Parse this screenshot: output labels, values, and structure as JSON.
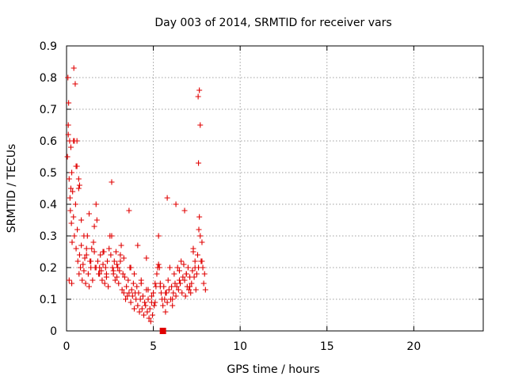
{
  "chart_data": {
    "type": "scatter",
    "title": "Day 003 of 2014, SRMTID for receiver vars",
    "xlabel": "GPS time / hours",
    "ylabel": "SRMTID / TECUs",
    "xlim": [
      0,
      24
    ],
    "ylim": [
      0,
      0.9
    ],
    "xticks": [
      0,
      5,
      10,
      15,
      20
    ],
    "xtick_labels": [
      "0",
      "5",
      "10",
      "15",
      "20"
    ],
    "yticks": [
      0,
      0.1,
      0.2,
      0.3,
      0.4,
      0.5,
      0.6,
      0.7,
      0.8,
      0.9
    ],
    "ytick_labels": [
      "0",
      "0.1",
      "0.2",
      "0.3",
      "0.4",
      "0.5",
      "0.6",
      "0.7",
      "0.8",
      "0.9"
    ],
    "grid": true,
    "marker": "+",
    "color": "#e00000",
    "series": [
      {
        "name": "receiver vars",
        "x": [
          0.05,
          0.08,
          0.1,
          0.12,
          0.15,
          0.18,
          0.2,
          0.22,
          0.25,
          0.28,
          0.3,
          0.32,
          0.35,
          0.4,
          0.42,
          0.45,
          0.5,
          0.52,
          0.55,
          0.6,
          0.62,
          0.65,
          0.7,
          0.72,
          0.75,
          0.8,
          0.85,
          0.9,
          0.95,
          1.0,
          1.05,
          1.1,
          1.15,
          1.2,
          1.25,
          1.3,
          1.35,
          1.4,
          1.45,
          1.5,
          1.55,
          1.6,
          1.65,
          1.7,
          1.75,
          1.8,
          1.85,
          1.9,
          1.95,
          2.0,
          2.05,
          2.1,
          2.15,
          2.2,
          2.25,
          2.3,
          2.35,
          2.4,
          2.45,
          2.5,
          2.55,
          2.6,
          2.65,
          2.7,
          2.75,
          2.8,
          2.85,
          2.9,
          2.95,
          3.0,
          3.05,
          3.1,
          3.15,
          3.2,
          3.25,
          3.3,
          3.35,
          3.4,
          3.45,
          3.5,
          3.55,
          3.6,
          3.65,
          3.7,
          3.75,
          3.8,
          3.85,
          3.9,
          3.95,
          4.0,
          4.05,
          4.1,
          4.15,
          4.2,
          4.25,
          4.3,
          4.35,
          4.4,
          4.45,
          4.5,
          4.55,
          4.6,
          4.65,
          4.7,
          4.75,
          4.8,
          4.85,
          4.9,
          4.95,
          5.0,
          5.05,
          5.1,
          5.15,
          5.2,
          5.25,
          5.3,
          5.35,
          5.4,
          5.45,
          5.5,
          5.55,
          5.6,
          5.65,
          5.7,
          5.75,
          5.8,
          5.85,
          5.9,
          5.95,
          6.0,
          6.05,
          6.1,
          6.15,
          6.2,
          6.25,
          6.3,
          6.35,
          6.4,
          6.45,
          6.5,
          6.55,
          6.6,
          6.65,
          6.7,
          6.75,
          6.8,
          6.85,
          6.9,
          6.95,
          7.0,
          7.05,
          7.1,
          7.15,
          7.2,
          7.25,
          7.3,
          7.35,
          7.4,
          7.45,
          7.5,
          7.55,
          7.6,
          7.65,
          7.7,
          7.75,
          7.8,
          7.85,
          7.9,
          7.95,
          8.0,
          0.15,
          0.3,
          0.45,
          0.6,
          0.75,
          1.3,
          1.6,
          2.1,
          2.6,
          3.1,
          3.6,
          4.1,
          4.6,
          5.3,
          5.8,
          6.3,
          6.8,
          7.3,
          7.6,
          7.62,
          7.65,
          7.58,
          7.7,
          0.1,
          0.25,
          0.4,
          0.55,
          0.7,
          0.85,
          1.0,
          1.15,
          1.4,
          1.7,
          1.9,
          2.3,
          2.7,
          2.9,
          3.3,
          3.7,
          3.9,
          4.3,
          4.7,
          4.9,
          5.1,
          5.4,
          5.7,
          6.1,
          6.5,
          6.9,
          7.1,
          7.4,
          7.8
        ],
        "y": [
          0.55,
          0.8,
          0.65,
          0.72,
          0.48,
          0.6,
          0.42,
          0.38,
          0.58,
          0.34,
          0.5,
          0.28,
          0.44,
          0.36,
          0.83,
          0.3,
          0.78,
          0.4,
          0.26,
          0.6,
          0.32,
          0.22,
          0.45,
          0.18,
          0.24,
          0.2,
          0.27,
          0.16,
          0.21,
          0.19,
          0.23,
          0.15,
          0.24,
          0.3,
          0.18,
          0.14,
          0.22,
          0.2,
          0.26,
          0.16,
          0.28,
          0.25,
          0.2,
          0.4,
          0.35,
          0.22,
          0.18,
          0.2,
          0.24,
          0.19,
          0.16,
          0.21,
          0.25,
          0.15,
          0.2,
          0.18,
          0.22,
          0.14,
          0.26,
          0.3,
          0.24,
          0.47,
          0.2,
          0.18,
          0.22,
          0.16,
          0.25,
          0.17,
          0.2,
          0.15,
          0.19,
          0.22,
          0.27,
          0.13,
          0.18,
          0.12,
          0.17,
          0.1,
          0.14,
          0.11,
          0.16,
          0.12,
          0.2,
          0.09,
          0.13,
          0.11,
          0.15,
          0.07,
          0.12,
          0.1,
          0.14,
          0.08,
          0.12,
          0.06,
          0.1,
          0.16,
          0.07,
          0.11,
          0.05,
          0.09,
          0.08,
          0.13,
          0.06,
          0.1,
          0.04,
          0.07,
          0.03,
          0.09,
          0.05,
          0.12,
          0.08,
          0.15,
          0.14,
          0.18,
          0.2,
          0.3,
          0.2,
          0.15,
          0.12,
          0.1,
          0.08,
          0.14,
          0.1,
          0.06,
          0.12,
          0.09,
          0.16,
          0.13,
          0.2,
          0.1,
          0.14,
          0.08,
          0.12,
          0.18,
          0.15,
          0.11,
          0.14,
          0.2,
          0.13,
          0.19,
          0.15,
          0.22,
          0.12,
          0.17,
          0.21,
          0.16,
          0.11,
          0.18,
          0.14,
          0.2,
          0.13,
          0.17,
          0.12,
          0.15,
          0.19,
          0.25,
          0.17,
          0.22,
          0.13,
          0.18,
          0.24,
          0.2,
          0.36,
          0.3,
          0.22,
          0.28,
          0.2,
          0.15,
          0.18,
          0.13,
          0.16,
          0.15,
          0.6,
          0.52,
          0.46,
          0.37,
          0.33,
          0.25,
          0.3,
          0.24,
          0.38,
          0.27,
          0.23,
          0.21,
          0.42,
          0.4,
          0.38,
          0.26,
          0.53,
          0.32,
          0.76,
          0.74,
          0.65,
          0.62,
          0.45,
          0.6,
          0.52,
          0.48,
          0.35,
          0.3,
          0.26,
          0.22,
          0.2,
          0.18,
          0.17,
          0.19,
          0.21,
          0.23,
          0.2,
          0.18,
          0.15,
          0.13,
          0.11,
          0.09,
          0.14,
          0.12,
          0.1,
          0.16,
          0.18,
          0.14,
          0.2,
          0.22
        ]
      }
    ],
    "markers": [
      {
        "name": "zero-value marker",
        "x": 5.55,
        "y": 0,
        "shape": "square"
      }
    ]
  }
}
